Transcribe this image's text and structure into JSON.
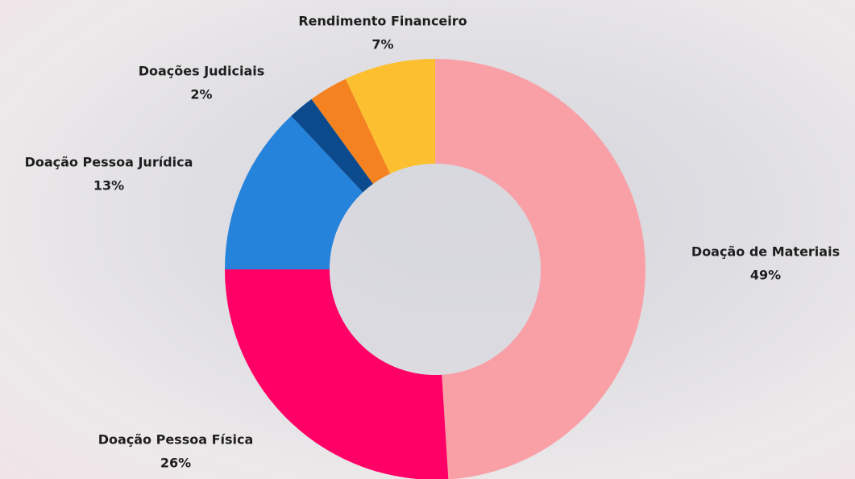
{
  "chart_data": {
    "type": "donut",
    "categories": [
      "Doação de Materiais",
      "Doação Pessoa Física",
      "Doação Pessoa Jurídica",
      "Doações Judiciais",
      null,
      "Rendimento Financeiro"
    ],
    "values": [
      49,
      26,
      13,
      2,
      3,
      7
    ],
    "value_labels": [
      "49%",
      "26%",
      "13%",
      "2%",
      null,
      "7%"
    ],
    "colors": [
      "#f9a0a6",
      "#ff0066",
      "#2583dc",
      "#0b4a8c",
      "#f58220",
      "#fbbf30"
    ]
  }
}
